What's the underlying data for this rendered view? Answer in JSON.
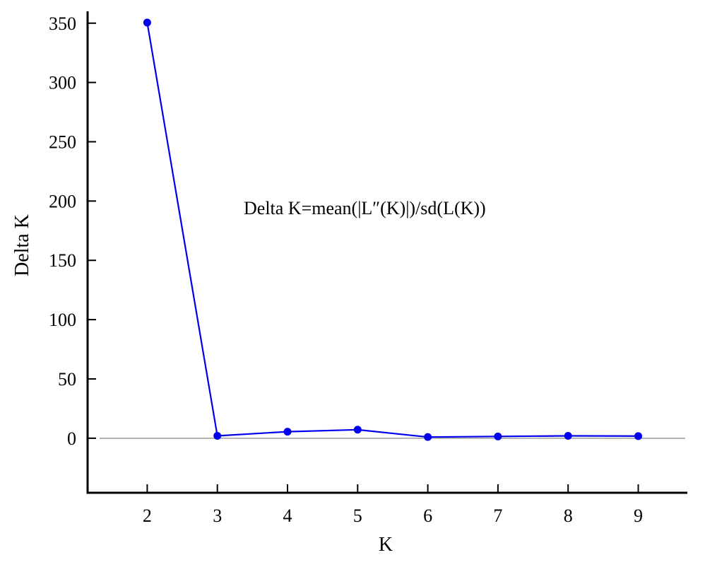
{
  "chart_data": {
    "type": "line",
    "xlabel": "K",
    "ylabel": "Delta K",
    "annotation": "Delta K=mean(|L″(K)|)/sd(L(K))",
    "x": [
      2,
      3,
      4,
      5,
      6,
      7,
      8,
      9
    ],
    "series": [
      {
        "values": [
          350.5,
          2.0,
          5.5,
          7.2,
          1.0,
          1.5,
          2.0,
          1.8
        ],
        "color": "#0000ee"
      }
    ],
    "xlim": [
      1.15,
      9.7
    ],
    "ylim": [
      -46,
      360
    ],
    "x_ticks": [
      2,
      3,
      4,
      5,
      6,
      7,
      8,
      9
    ],
    "y_ticks": [
      0,
      50,
      100,
      150,
      200,
      250,
      300,
      350
    ],
    "zero_line": true,
    "zero_line_color": "#9b9b9b",
    "grid": false,
    "legend": "none"
  }
}
